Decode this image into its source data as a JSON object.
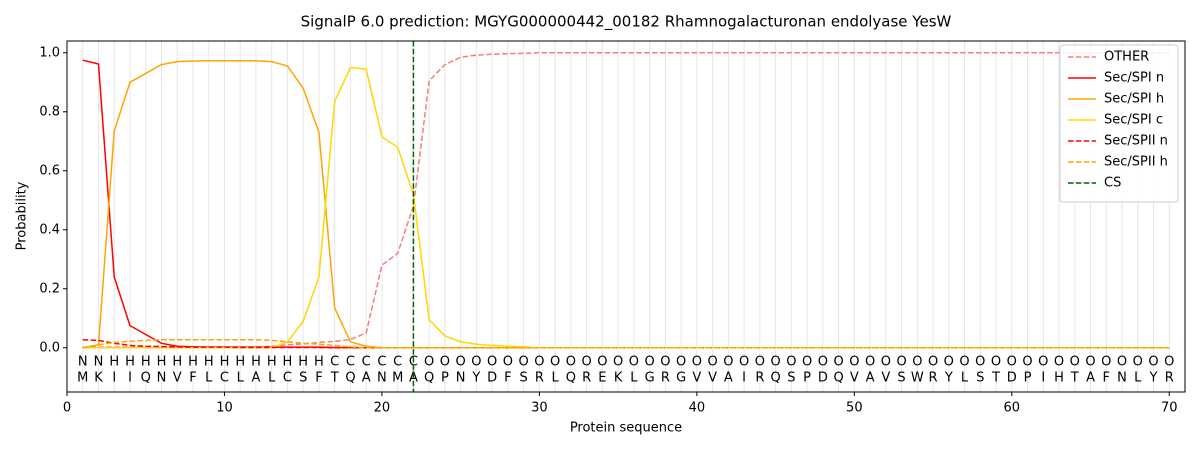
{
  "chart_data": {
    "type": "line",
    "title": "SignalP 6.0 prediction: MGYG000000442_00182 Rhamnogalacturonan endolyase YesW",
    "xlabel": "Protein sequence",
    "ylabel": "Probability",
    "xlim": [
      0,
      71
    ],
    "ylim": [
      -0.15,
      1.04
    ],
    "xticks": [
      0,
      10,
      20,
      30,
      40,
      50,
      60,
      70
    ],
    "yticks": [
      {
        "value": 0,
        "label": "0.0"
      },
      {
        "value": 0.2,
        "label": "0.2"
      },
      {
        "value": 0.4,
        "label": "0.4"
      },
      {
        "value": 0.6,
        "label": "0.6"
      },
      {
        "value": 0.8,
        "label": "0.8"
      },
      {
        "value": 1,
        "label": "1.0"
      }
    ],
    "legend": "upper right",
    "x": [
      1,
      2,
      3,
      4,
      5,
      6,
      7,
      8,
      9,
      10,
      11,
      12,
      13,
      14,
      15,
      16,
      17,
      18,
      19,
      20,
      21,
      22,
      23,
      24,
      25,
      26,
      27,
      28,
      29,
      30,
      31,
      32,
      33,
      34,
      35,
      36,
      37,
      38,
      39,
      40,
      41,
      42,
      43,
      44,
      45,
      46,
      47,
      48,
      49,
      50,
      51,
      52,
      53,
      54,
      55,
      56,
      57,
      58,
      59,
      60,
      61,
      62,
      63,
      64,
      65,
      66,
      67,
      68,
      69,
      70
    ],
    "sequence": [
      "M",
      "K",
      "I",
      "I",
      "Q",
      "N",
      "V",
      "F",
      "L",
      "C",
      "L",
      "A",
      "L",
      "C",
      "S",
      "F",
      "T",
      "Q",
      "A",
      "N",
      "M",
      "A",
      "Q",
      "P",
      "N",
      "Y",
      "D",
      "F",
      "S",
      "R",
      "L",
      "Q",
      "R",
      "E",
      "K",
      "L",
      "G",
      "R",
      "G",
      "V",
      "V",
      "A",
      "I",
      "R",
      "Q",
      "S",
      "P",
      "D",
      "Q",
      "V",
      "A",
      "V",
      "S",
      "W",
      "R",
      "Y",
      "L",
      "S",
      "T",
      "D",
      "P",
      "I",
      "H",
      "T",
      "A",
      "F",
      "N",
      "L",
      "Y",
      "R"
    ],
    "labels": [
      "N",
      "N",
      "H",
      "H",
      "H",
      "H",
      "H",
      "H",
      "H",
      "H",
      "H",
      "H",
      "H",
      "H",
      "H",
      "H",
      "C",
      "C",
      "C",
      "C",
      "C",
      "C",
      "O",
      "O",
      "O",
      "O",
      "O",
      "O",
      "O",
      "O",
      "O",
      "O",
      "O",
      "O",
      "O",
      "O",
      "O",
      "O",
      "O",
      "O",
      "O",
      "O",
      "O",
      "O",
      "O",
      "O",
      "O",
      "O",
      "O",
      "O",
      "O",
      "O",
      "O",
      "O",
      "O",
      "O",
      "O",
      "O",
      "O",
      "O",
      "O",
      "O",
      "O",
      "O",
      "O",
      "O",
      "O",
      "O",
      "O",
      "O"
    ],
    "label_colors": {
      "N": "#ff0000",
      "H": "#ffa500",
      "C": "#ffd700",
      "O": "#808080"
    },
    "series": [
      {
        "name": "OTHER",
        "color": "#f08080",
        "dashed": true,
        "values": [
          0.002,
          0.002,
          0.002,
          0.002,
          0.002,
          0.002,
          0.002,
          0.002,
          0.002,
          0.002,
          0.002,
          0.002,
          0.005,
          0.01,
          0.013,
          0.018,
          0.022,
          0.028,
          0.05,
          0.28,
          0.32,
          0.48,
          0.905,
          0.96,
          0.985,
          0.992,
          0.995,
          0.997,
          0.998,
          1,
          1,
          1,
          1,
          1,
          1,
          1,
          1,
          1,
          1,
          1,
          1,
          1,
          1,
          1,
          1,
          1,
          1,
          1,
          1,
          1,
          1,
          1,
          1,
          1,
          1,
          1,
          1,
          1,
          1,
          1,
          1,
          1,
          1,
          1,
          1,
          1,
          1,
          1,
          1,
          1
        ]
      },
      {
        "name": "Sec/SPI n",
        "color": "#ff0000",
        "dashed": false,
        "values": [
          0.975,
          0.962,
          0.24,
          0.075,
          0.045,
          0.015,
          0.005,
          0.003,
          0.002,
          0.002,
          0.002,
          0.002,
          0.002,
          0.002,
          0.002,
          0.002,
          0.001,
          0.001,
          0,
          0,
          0,
          0,
          0,
          0,
          0,
          0,
          0,
          0,
          0,
          0,
          0,
          0,
          0,
          0,
          0,
          0,
          0,
          0,
          0,
          0,
          0,
          0,
          0,
          0,
          0,
          0,
          0,
          0,
          0,
          0,
          0,
          0,
          0,
          0,
          0,
          0,
          0,
          0,
          0,
          0,
          0,
          0,
          0,
          0,
          0,
          0,
          0,
          0,
          0,
          0
        ]
      },
      {
        "name": "Sec/SPI h",
        "color": "#ffa500",
        "dashed": false,
        "values": [
          0,
          0.01,
          0.735,
          0.9,
          0.93,
          0.96,
          0.97,
          0.972,
          0.973,
          0.973,
          0.973,
          0.973,
          0.97,
          0.955,
          0.88,
          0.73,
          0.135,
          0.02,
          0.005,
          0,
          0,
          0,
          0,
          0,
          0,
          0,
          0,
          0,
          0,
          0,
          0,
          0,
          0,
          0,
          0,
          0,
          0,
          0,
          0,
          0,
          0,
          0,
          0,
          0,
          0,
          0,
          0,
          0,
          0,
          0,
          0,
          0,
          0,
          0,
          0,
          0,
          0,
          0,
          0,
          0,
          0,
          0,
          0,
          0,
          0,
          0,
          0,
          0,
          0,
          0
        ]
      },
      {
        "name": "Sec/SPI c",
        "color": "#ffd700",
        "dashed": false,
        "values": [
          0,
          0,
          0,
          0,
          0,
          0,
          0,
          0,
          0,
          0,
          0,
          0,
          0,
          0.02,
          0.09,
          0.24,
          0.835,
          0.95,
          0.945,
          0.715,
          0.68,
          0.52,
          0.095,
          0.04,
          0.02,
          0.012,
          0.008,
          0.005,
          0.003,
          0,
          0,
          0,
          0,
          0,
          0,
          0,
          0,
          0,
          0,
          0,
          0,
          0,
          0,
          0,
          0,
          0,
          0,
          0,
          0,
          0,
          0,
          0,
          0,
          0,
          0,
          0,
          0,
          0,
          0,
          0,
          0,
          0,
          0,
          0,
          0,
          0,
          0,
          0,
          0,
          0
        ]
      },
      {
        "name": "Sec/SPII n",
        "color": "#ff0000",
        "dashed": true,
        "values": [
          0.027,
          0.025,
          0.015,
          0.008,
          0.005,
          0.004,
          0.003,
          0.002,
          0.002,
          0.002,
          0.001,
          0.001,
          0.001,
          0.001,
          0.001,
          0.001,
          0,
          0,
          0,
          0,
          0,
          0,
          0,
          0,
          0,
          0,
          0,
          0,
          0,
          0,
          0,
          0,
          0,
          0,
          0,
          0,
          0,
          0,
          0,
          0,
          0,
          0,
          0,
          0,
          0,
          0,
          0,
          0,
          0,
          0,
          0,
          0,
          0,
          0,
          0,
          0,
          0,
          0,
          0,
          0,
          0,
          0,
          0,
          0,
          0,
          0,
          0,
          0,
          0,
          0
        ]
      },
      {
        "name": "Sec/SPII h",
        "color": "#ffa500",
        "dashed": true,
        "values": [
          0,
          0.01,
          0.018,
          0.022,
          0.025,
          0.027,
          0.027,
          0.027,
          0.027,
          0.027,
          0.027,
          0.027,
          0.025,
          0.02,
          0.015,
          0.012,
          0.008,
          0.003,
          0,
          0,
          0,
          0,
          0,
          0,
          0,
          0,
          0,
          0,
          0,
          0,
          0,
          0,
          0,
          0,
          0,
          0,
          0,
          0,
          0,
          0,
          0,
          0,
          0,
          0,
          0,
          0,
          0,
          0,
          0,
          0,
          0,
          0,
          0,
          0,
          0,
          0,
          0,
          0,
          0,
          0,
          0,
          0,
          0,
          0,
          0,
          0,
          0,
          0,
          0,
          0
        ]
      }
    ],
    "cs": {
      "name": "CS",
      "x": 22,
      "color": "#006400"
    }
  }
}
